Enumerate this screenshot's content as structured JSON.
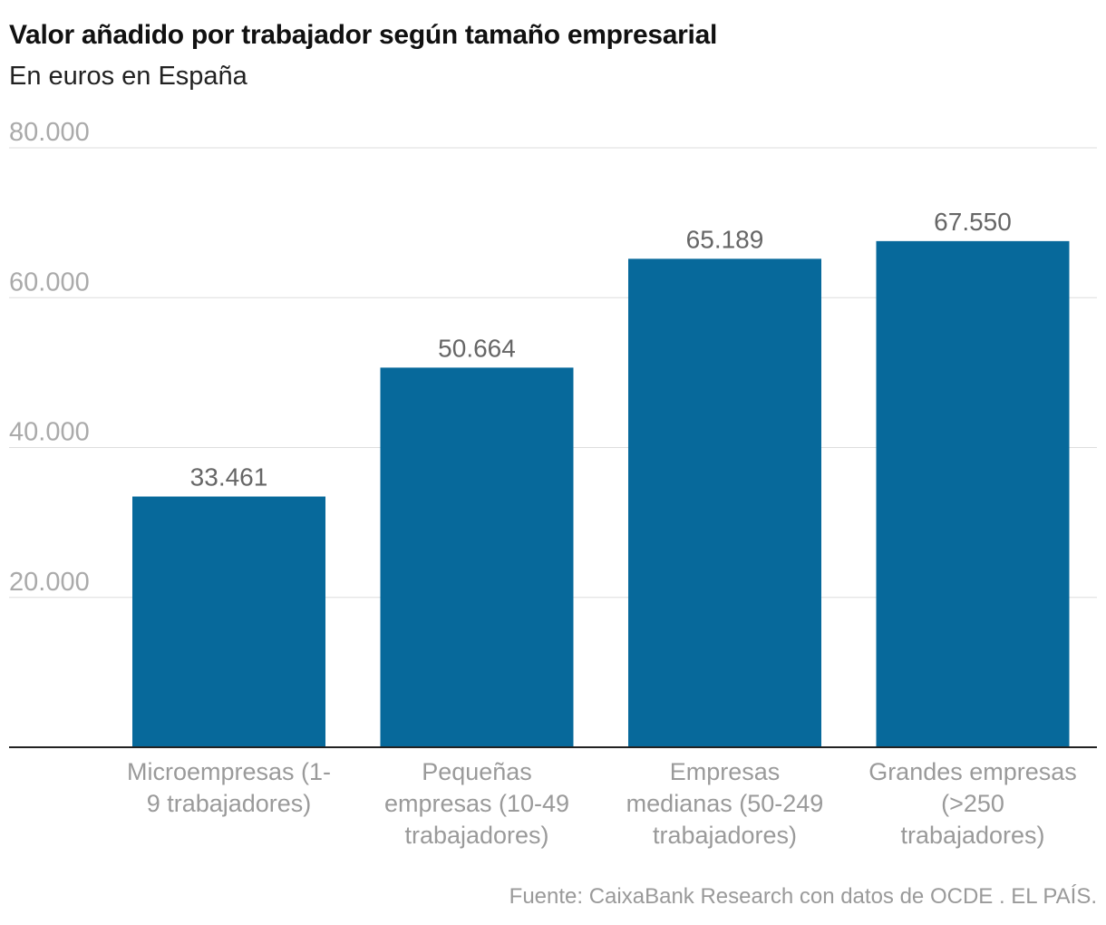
{
  "chart_data": {
    "type": "bar",
    "title": "Valor añadido por trabajador según tamaño empresarial",
    "subtitle": "En euros en España",
    "categories": [
      [
        "Microempresas (1-",
        "9 trabajadores)"
      ],
      [
        "Pequeñas",
        "empresas (10-49",
        "trabajadores)"
      ],
      [
        "Empresas",
        "medianas (50-249",
        "trabajadores)"
      ],
      [
        "Grandes empresas",
        "(>250",
        "trabajadores)"
      ]
    ],
    "values": [
      33461,
      50664,
      65189,
      67550
    ],
    "value_labels": [
      "33.461",
      "50.664",
      "65.189",
      "67.550"
    ],
    "y_ticks": [
      20000,
      40000,
      60000,
      80000
    ],
    "y_tick_labels": [
      "20.000",
      "40.000",
      "60.000",
      "80.000"
    ],
    "ylim": [
      0,
      80000
    ],
    "xlabel": "",
    "ylabel": "",
    "grid": true,
    "colors": {
      "bar": "#07699b",
      "gridline": "#dddddd",
      "baseline": "#222222",
      "tick_label": "#aaaaaa",
      "category_label": "#9a9a9a",
      "value_label": "#666666"
    }
  },
  "source": "Fuente: CaixaBank Research con datos de OCDE . EL PAÍS."
}
